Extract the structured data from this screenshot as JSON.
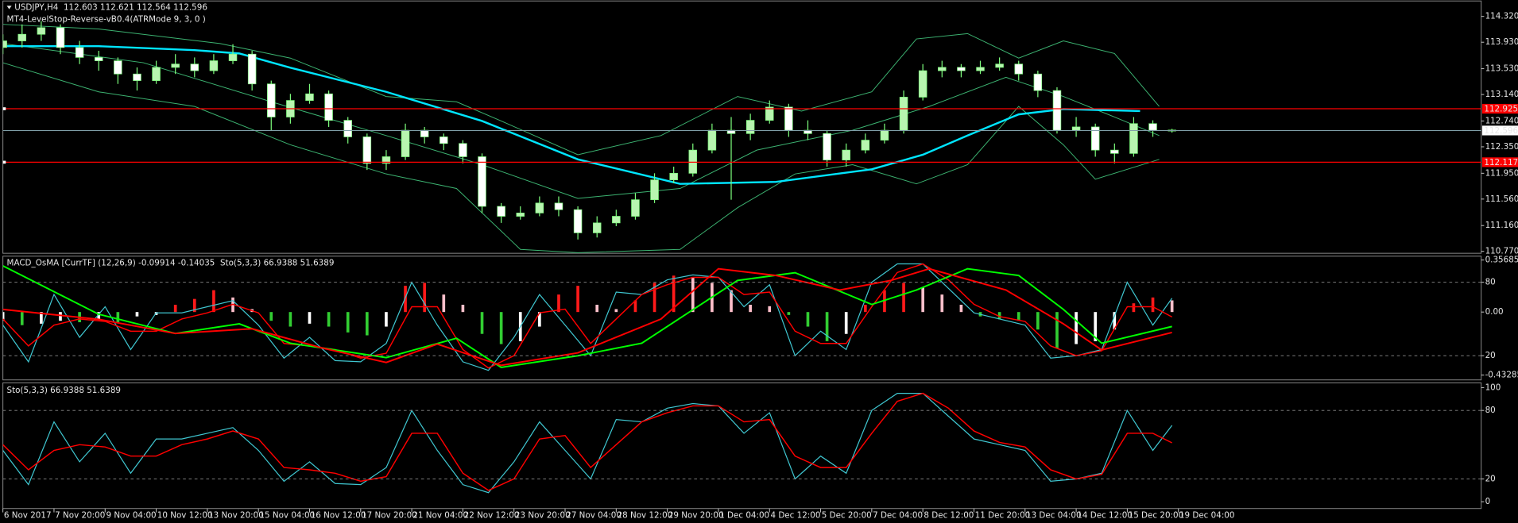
{
  "chart_data": [
    {
      "type": "candlestick",
      "title": "USDJPY,H4  112.603 112.621 112.564 112.596",
      "subtitle": "MT4-LevelStop-Reverse-vB0.4(ATRMode 9, 3, 0 )",
      "xlim": [
        0,
        231.4
      ],
      "ylim": [
        110.741,
        114.568
      ],
      "yticks": [
        {
          "value": 114.32,
          "label": "114.320"
        },
        {
          "value": 113.93,
          "label": "113.930"
        },
        {
          "value": 113.53,
          "label": "113.530"
        },
        {
          "value": 113.14,
          "label": "113.140"
        },
        {
          "value": 112.74,
          "label": "112.740"
        },
        {
          "value": 112.35,
          "label": "112.350"
        },
        {
          "value": 111.95,
          "label": "111.950"
        },
        {
          "value": 111.56,
          "label": "111.560"
        },
        {
          "value": 111.16,
          "label": "111.160"
        },
        {
          "value": 110.77,
          "label": "110.770"
        }
      ],
      "bull_color": "#b8f5b0",
      "bear_color": "#ffffff",
      "wick_color": "#7cfc7c",
      "x": [
        0,
        3,
        6,
        9,
        12,
        15,
        18,
        21,
        24,
        27,
        30,
        33,
        36,
        39,
        42,
        45,
        48,
        51,
        54,
        57,
        60,
        63,
        66,
        69,
        72,
        75,
        78,
        81,
        84,
        87,
        90,
        93,
        96,
        99,
        102,
        105,
        108,
        111,
        114,
        117,
        120,
        123,
        126,
        129,
        132,
        135,
        138,
        141,
        144,
        147,
        150,
        153,
        156,
        159,
        162,
        165,
        168,
        171,
        174,
        177,
        180,
        183
      ],
      "open": [
        113.85,
        113.95,
        114.05,
        114.15,
        113.85,
        113.7,
        113.65,
        113.45,
        113.35,
        113.55,
        113.6,
        113.5,
        113.65,
        113.75,
        113.3,
        112.8,
        113.05,
        113.15,
        112.75,
        112.5,
        112.1,
        112.2,
        112.6,
        112.5,
        112.4,
        112.2,
        111.45,
        111.3,
        111.35,
        111.5,
        111.4,
        111.05,
        111.2,
        111.3,
        111.55,
        111.85,
        111.95,
        112.3,
        112.6,
        112.55,
        112.75,
        112.95,
        112.6,
        112.55,
        112.15,
        112.3,
        112.45,
        112.6,
        113.1,
        113.5,
        113.55,
        113.5,
        113.55,
        113.6,
        113.45,
        113.2,
        112.6,
        112.65,
        112.3,
        112.25,
        112.7,
        112.603
      ],
      "high": [
        114.05,
        114.2,
        114.25,
        114.2,
        113.95,
        113.8,
        113.7,
        113.55,
        113.65,
        113.75,
        113.7,
        113.75,
        113.9,
        113.8,
        113.35,
        113.15,
        113.3,
        113.2,
        112.8,
        112.55,
        112.3,
        112.7,
        112.65,
        112.55,
        112.45,
        112.25,
        111.5,
        111.45,
        111.6,
        111.6,
        111.45,
        111.3,
        111.4,
        111.65,
        111.95,
        112.05,
        112.4,
        112.7,
        112.8,
        112.85,
        113.05,
        113.0,
        112.75,
        112.6,
        112.4,
        112.55,
        112.7,
        113.2,
        113.6,
        113.65,
        113.6,
        113.65,
        113.7,
        113.65,
        113.5,
        113.25,
        112.8,
        112.7,
        112.4,
        112.8,
        112.75,
        112.621
      ],
      "low": [
        113.75,
        113.85,
        113.95,
        113.75,
        113.6,
        113.5,
        113.3,
        113.2,
        113.3,
        113.45,
        113.4,
        113.45,
        113.6,
        113.2,
        112.6,
        112.7,
        113.0,
        112.65,
        112.4,
        112.0,
        112.0,
        112.15,
        112.4,
        112.3,
        112.1,
        111.35,
        111.2,
        111.25,
        111.3,
        111.3,
        110.95,
        110.98,
        111.15,
        111.25,
        111.5,
        111.8,
        111.9,
        112.25,
        111.55,
        112.45,
        112.7,
        112.5,
        112.45,
        112.05,
        112.05,
        112.25,
        112.4,
        112.55,
        113.05,
        113.4,
        113.4,
        113.45,
        113.5,
        113.35,
        113.1,
        112.55,
        112.5,
        112.2,
        112.1,
        112.2,
        112.5,
        112.564
      ],
      "close": [
        113.95,
        114.05,
        114.15,
        113.85,
        113.7,
        113.65,
        113.45,
        113.35,
        113.55,
        113.6,
        113.5,
        113.65,
        113.75,
        113.3,
        112.8,
        113.05,
        113.15,
        112.75,
        112.5,
        112.1,
        112.2,
        112.6,
        112.5,
        112.4,
        112.2,
        111.45,
        111.3,
        111.35,
        111.5,
        111.4,
        111.05,
        111.2,
        111.3,
        111.55,
        111.85,
        111.95,
        112.3,
        112.6,
        112.55,
        112.75,
        112.95,
        112.6,
        112.55,
        112.15,
        112.3,
        112.45,
        112.6,
        113.1,
        113.5,
        113.55,
        113.5,
        113.55,
        113.6,
        113.45,
        113.2,
        112.6,
        112.65,
        112.3,
        112.25,
        112.7,
        112.6,
        112.596
      ],
      "series": [
        {
          "color": "#3cb371",
          "width": 0.8,
          "x": [
            0,
            15,
            34,
            45,
            60,
            71,
            78,
            90,
            103,
            115,
            125,
            136,
            143,
            151,
            159,
            166,
            174,
            181
          ],
          "values": [
            114.2,
            114.13,
            113.91,
            113.69,
            113.11,
            113.03,
            112.74,
            112.23,
            112.52,
            113.11,
            112.89,
            113.18,
            113.98,
            114.06,
            113.69,
            113.95,
            113.76,
            112.96
          ]
        },
        {
          "color": "#3cb371",
          "width": 0.8,
          "x": [
            0,
            22,
            42,
            60,
            75,
            90,
            106,
            118,
            133,
            145,
            157,
            166,
            174,
            181
          ],
          "values": [
            113.91,
            113.62,
            113.03,
            112.52,
            112.08,
            111.57,
            111.72,
            112.3,
            112.6,
            112.96,
            113.4,
            113.11,
            112.8,
            112.52
          ]
        },
        {
          "color": "#3cb371",
          "width": 0.8,
          "x": [
            0,
            15,
            30,
            45,
            60,
            71,
            81,
            90,
            106,
            115,
            124,
            133,
            143,
            151,
            159,
            166,
            171,
            181
          ],
          "values": [
            113.62,
            113.18,
            112.96,
            112.38,
            111.94,
            111.72,
            110.8,
            110.75,
            110.8,
            111.43,
            111.94,
            112.08,
            111.79,
            112.08,
            112.96,
            112.38,
            111.86,
            112.16
          ]
        },
        {
          "color": "#00e5ff",
          "width": 2,
          "x": [
            0,
            15,
            30,
            37,
            45,
            60,
            75,
            90,
            106,
            121,
            136,
            144,
            151,
            159,
            166,
            178
          ],
          "values": [
            113.87,
            113.87,
            113.81,
            113.76,
            113.545,
            113.18,
            112.74,
            112.16,
            111.79,
            111.82,
            112.01,
            112.23,
            112.52,
            112.84,
            112.92,
            112.89
          ]
        }
      ],
      "hlines": [
        {
          "value": 112.925,
          "label": "112.925",
          "color": "#ff0000"
        },
        {
          "value": 112.117,
          "label": "112.117",
          "color": "#ff0000"
        }
      ],
      "price_line": {
        "value": 112.596,
        "label": "112.596",
        "color": "#7f9fa8"
      }
    },
    {
      "type": "macd",
      "title": "MACD_OsMA [CurrTF] (12,26,9) -0.09914 -0.14035  Sto(5,3,3) 66.9388 51.6389",
      "xlim": [
        0,
        231.4
      ],
      "ylim": [
        -0.466,
        0.3834
      ],
      "yticks": [
        0.35685,
        {
          "value": 0,
          "label": "0.00"
        },
        -0.43285
      ],
      "y2lim": [
        0.2,
        101.3
      ],
      "y2ticks": [
        80,
        20
      ],
      "y2grid": true,
      "hist_colors": {
        "up_positive": "#ff1a1a",
        "down_positive": "#ffc0cb",
        "down_negative": "#32cd32",
        "up_negative": "#ffffff"
      },
      "x": [
        0,
        3,
        6,
        9,
        12,
        15,
        18,
        21,
        24,
        27,
        30,
        33,
        36,
        39,
        42,
        45,
        48,
        51,
        54,
        57,
        60,
        63,
        66,
        69,
        72,
        75,
        78,
        81,
        84,
        87,
        90,
        93,
        96,
        99,
        102,
        105,
        108,
        111,
        114,
        117,
        120,
        123,
        126,
        129,
        132,
        135,
        138,
        141,
        144,
        147,
        150,
        153,
        156,
        159,
        162,
        165,
        168,
        171,
        174,
        177,
        180,
        183
      ],
      "values": [
        -0.06,
        -0.09,
        -0.08,
        -0.06,
        -0.07,
        -0.05,
        -0.07,
        -0.03,
        -0.02,
        0.05,
        0.09,
        0.15,
        0.1,
        0.02,
        -0.06,
        -0.1,
        -0.08,
        -0.1,
        -0.14,
        -0.16,
        -0.1,
        0.18,
        0.2,
        0.12,
        0.05,
        -0.15,
        -0.22,
        -0.2,
        -0.1,
        0.12,
        0.18,
        0.05,
        0.02,
        0.08,
        0.2,
        0.25,
        0.24,
        0.2,
        0.15,
        0.05,
        0.04,
        -0.02,
        -0.1,
        -0.2,
        -0.15,
        0.05,
        0.15,
        0.2,
        0.17,
        0.12,
        0.05,
        -0.03,
        -0.05,
        -0.06,
        -0.12,
        -0.25,
        -0.22,
        -0.2,
        -0.12,
        0.06,
        0.1,
        0.08
      ],
      "series": [
        {
          "color": "#00ff00",
          "width": 1.6,
          "x": [
            0,
            15,
            27,
            37,
            45,
            60,
            71,
            78,
            90,
            100,
            115,
            124,
            136,
            143,
            151,
            159,
            166,
            172,
            183
          ],
          "values": [
            0.317,
            -0.015,
            -0.147,
            -0.081,
            -0.214,
            -0.313,
            -0.18,
            -0.38,
            -0.3,
            -0.214,
            0.217,
            0.27,
            0.052,
            0.151,
            0.297,
            0.251,
            0.018,
            -0.214,
            -0.09914
          ]
        },
        {
          "color": "#ff0000",
          "width": 1.6,
          "x": [
            0,
            15,
            27,
            39,
            50,
            60,
            68,
            78,
            90,
            103,
            112,
            121,
            131,
            139,
            145,
            157,
            166,
            172,
            183
          ],
          "values": [
            0.018,
            -0.05,
            -0.147,
            -0.115,
            -0.247,
            -0.346,
            -0.22,
            -0.366,
            -0.28,
            -0.048,
            0.297,
            0.251,
            0.151,
            0.217,
            0.297,
            0.151,
            -0.081,
            -0.26,
            -0.14035
          ]
        }
      ]
    },
    {
      "type": "line",
      "title": "Sto(5,3,3) 66.9388 51.6389",
      "xlim": [
        0,
        231.4
      ],
      "ylim": [
        -5.9,
        104.2
      ],
      "yticks": [
        100,
        80,
        20,
        0
      ],
      "grid": true,
      "xticks": [
        {
          "value": 0,
          "label": "6 Nov 2017"
        },
        {
          "value": 8,
          "label": "7 Nov 20:00"
        },
        {
          "value": 16,
          "label": "9 Nov 04:00"
        },
        {
          "value": 24,
          "label": "10 Nov 12:00"
        },
        {
          "value": 32,
          "label": "13 Nov 20:00"
        },
        {
          "value": 40,
          "label": "15 Nov 04:00"
        },
        {
          "value": 48,
          "label": "16 Nov 12:00"
        },
        {
          "value": 56,
          "label": "17 Nov 20:00"
        },
        {
          "value": 64,
          "label": "21 Nov 04:00"
        },
        {
          "value": 72,
          "label": "22 Nov 12:00"
        },
        {
          "value": 80,
          "label": "23 Nov 20:00"
        },
        {
          "value": 88,
          "label": "27 Nov 04:00"
        },
        {
          "value": 96,
          "label": "28 Nov 12:00"
        },
        {
          "value": 104,
          "label": "29 Nov 20:00"
        },
        {
          "value": 112,
          "label": "1 Dec 04:00"
        },
        {
          "value": 120,
          "label": "4 Dec 12:00"
        },
        {
          "value": 128,
          "label": "5 Dec 20:00"
        },
        {
          "value": 136,
          "label": "7 Dec 04:00"
        },
        {
          "value": 144,
          "label": "8 Dec 12:00"
        },
        {
          "value": 152,
          "label": "11 Dec 20:00"
        },
        {
          "value": 160,
          "label": "13 Dec 04:00"
        },
        {
          "value": 168,
          "label": "14 Dec 12:00"
        },
        {
          "value": 176,
          "label": "15 Dec 20:00"
        },
        {
          "value": 184,
          "label": "19 Dec 04:00"
        }
      ],
      "series": [
        {
          "color": "#3fc6d0",
          "width": 1,
          "x": [
            0,
            4,
            8,
            12,
            16,
            20,
            24,
            28,
            32,
            36,
            40,
            44,
            48,
            52,
            56,
            60,
            64,
            68,
            72,
            76,
            80,
            84,
            88,
            92,
            96,
            100,
            104,
            108,
            112,
            116,
            120,
            124,
            128,
            132,
            136,
            140,
            144,
            148,
            152,
            156,
            160,
            164,
            168,
            172,
            176,
            180,
            183
          ],
          "values": [
            45,
            15,
            70,
            35,
            60,
            25,
            55,
            55,
            60,
            65,
            45,
            18,
            35,
            16,
            15,
            30,
            80,
            45,
            15,
            8,
            35,
            70,
            45,
            20,
            72,
            70,
            82,
            86,
            84,
            60,
            78,
            20,
            40,
            25,
            80,
            95,
            95,
            75,
            55,
            50,
            45,
            18,
            20,
            25,
            80,
            45,
            66.9388
          ]
        },
        {
          "color": "#ff0000",
          "width": 1.2,
          "x": [
            0,
            4,
            8,
            12,
            16,
            20,
            24,
            28,
            32,
            36,
            40,
            44,
            48,
            52,
            56,
            60,
            64,
            68,
            72,
            76,
            80,
            84,
            88,
            92,
            96,
            100,
            104,
            108,
            112,
            116,
            120,
            124,
            128,
            132,
            136,
            140,
            144,
            148,
            152,
            156,
            160,
            164,
            168,
            172,
            176,
            180,
            183
          ],
          "values": [
            50,
            28,
            45,
            50,
            48,
            40,
            40,
            50,
            55,
            62,
            55,
            30,
            28,
            25,
            18,
            22,
            60,
            60,
            25,
            10,
            20,
            55,
            58,
            30,
            50,
            70,
            78,
            84,
            84,
            70,
            72,
            40,
            30,
            30,
            60,
            88,
            95,
            82,
            62,
            52,
            48,
            28,
            20,
            24,
            60,
            60,
            51.6389
          ]
        }
      ]
    }
  ]
}
